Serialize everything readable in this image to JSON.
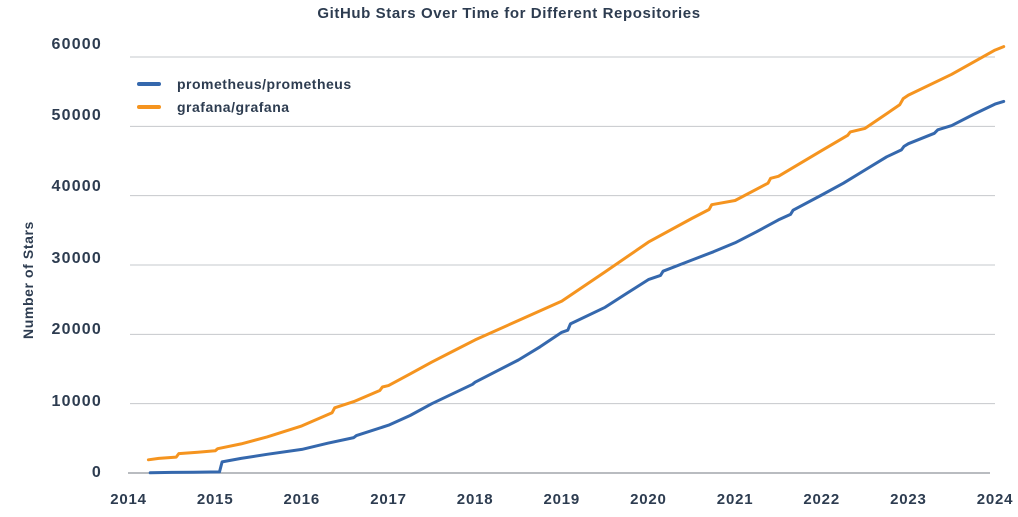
{
  "title": "GitHub Stars Over Time for Different Repositories",
  "colors": {
    "text": "#2d3c50",
    "grid": "#c6c8cc",
    "axis_line": "#8f939a",
    "background": "#ffffff",
    "series_blue": "#3568ad",
    "series_orange": "#f5941f"
  },
  "chart_data": {
    "type": "line",
    "title": "GitHub Stars Over Time for Different Repositories",
    "xlabel": "",
    "ylabel": "Number of Stars",
    "xlim": [
      2014,
      2024.15
    ],
    "ylim": [
      0,
      60000
    ],
    "grid": "horizontal",
    "legend_position": "upper-left",
    "x_ticks": [
      2014,
      2015,
      2016,
      2017,
      2018,
      2019,
      2020,
      2021,
      2022,
      2023,
      2024
    ],
    "x_tick_labels": [
      "2014",
      "2015",
      "2016",
      "2017",
      "2018",
      "2019",
      "2020",
      "2021",
      "2022",
      "2023",
      "2024"
    ],
    "y_ticks": [
      0,
      10000,
      20000,
      30000,
      40000,
      50000,
      60000
    ],
    "y_tick_labels": [
      "0",
      "10000",
      "20000",
      "30000",
      "40000",
      "50000",
      "60000"
    ],
    "series": [
      {
        "name": "prometheus/prometheus",
        "color": "#3568ad",
        "points": [
          [
            2014.25,
            30
          ],
          [
            2014.5,
            80
          ],
          [
            2014.75,
            120
          ],
          [
            2015.05,
            160
          ],
          [
            2015.08,
            1600
          ],
          [
            2015.3,
            2100
          ],
          [
            2015.6,
            2700
          ],
          [
            2016.0,
            3400
          ],
          [
            2016.3,
            4300
          ],
          [
            2016.6,
            5100
          ],
          [
            2016.63,
            5400
          ],
          [
            2017.0,
            6900
          ],
          [
            2017.25,
            8300
          ],
          [
            2017.5,
            10000
          ],
          [
            2017.97,
            12800
          ],
          [
            2018.0,
            13100
          ],
          [
            2018.25,
            14700
          ],
          [
            2018.5,
            16300
          ],
          [
            2018.75,
            18200
          ],
          [
            2019.0,
            20300
          ],
          [
            2019.07,
            20600
          ],
          [
            2019.1,
            21500
          ],
          [
            2019.5,
            23900
          ],
          [
            2019.75,
            25900
          ],
          [
            2020.0,
            27900
          ],
          [
            2020.14,
            28500
          ],
          [
            2020.17,
            29100
          ],
          [
            2020.5,
            30700
          ],
          [
            2020.75,
            31900
          ],
          [
            2021.0,
            33200
          ],
          [
            2021.25,
            34800
          ],
          [
            2021.5,
            36500
          ],
          [
            2021.64,
            37300
          ],
          [
            2021.67,
            37900
          ],
          [
            2022.0,
            40100
          ],
          [
            2022.25,
            41800
          ],
          [
            2022.5,
            43700
          ],
          [
            2022.75,
            45600
          ],
          [
            2022.92,
            46600
          ],
          [
            2022.95,
            47100
          ],
          [
            2023.0,
            47500
          ],
          [
            2023.3,
            49000
          ],
          [
            2023.34,
            49500
          ],
          [
            2023.5,
            50100
          ],
          [
            2023.75,
            51700
          ],
          [
            2024.0,
            53200
          ],
          [
            2024.1,
            53600
          ]
        ]
      },
      {
        "name": "grafana/grafana",
        "color": "#f5941f",
        "points": [
          [
            2014.23,
            1900
          ],
          [
            2014.35,
            2100
          ],
          [
            2014.55,
            2300
          ],
          [
            2014.58,
            2800
          ],
          [
            2014.8,
            3000
          ],
          [
            2015.0,
            3200
          ],
          [
            2015.03,
            3500
          ],
          [
            2015.3,
            4200
          ],
          [
            2015.6,
            5200
          ],
          [
            2016.0,
            6800
          ],
          [
            2016.35,
            8700
          ],
          [
            2016.38,
            9400
          ],
          [
            2016.6,
            10300
          ],
          [
            2016.9,
            11900
          ],
          [
            2016.93,
            12400
          ],
          [
            2017.0,
            12600
          ],
          [
            2017.25,
            14300
          ],
          [
            2017.5,
            16000
          ],
          [
            2017.75,
            17600
          ],
          [
            2018.0,
            19200
          ],
          [
            2018.5,
            22000
          ],
          [
            2019.0,
            24800
          ],
          [
            2019.5,
            29000
          ],
          [
            2020.0,
            33300
          ],
          [
            2020.5,
            36700
          ],
          [
            2020.7,
            38000
          ],
          [
            2020.73,
            38700
          ],
          [
            2021.0,
            39300
          ],
          [
            2021.38,
            41800
          ],
          [
            2021.41,
            42500
          ],
          [
            2021.5,
            42800
          ],
          [
            2022.0,
            46500
          ],
          [
            2022.3,
            48700
          ],
          [
            2022.33,
            49200
          ],
          [
            2022.5,
            49700
          ],
          [
            2022.9,
            53100
          ],
          [
            2022.94,
            54000
          ],
          [
            2023.0,
            54500
          ],
          [
            2023.5,
            57500
          ],
          [
            2024.0,
            61000
          ],
          [
            2024.1,
            61500
          ]
        ]
      }
    ]
  }
}
